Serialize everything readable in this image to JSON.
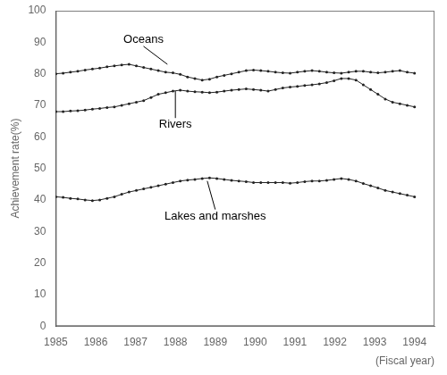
{
  "chart_data": {
    "type": "line",
    "ylabel": "Achievement rate(%)",
    "xlabel": "(Fiscal year)",
    "x": [
      1985,
      1985.183673,
      1985.367347,
      1985.55102,
      1985.734694,
      1985.918367,
      1986.102041,
      1986.285714,
      1986.469388,
      1986.653061,
      1986.836735,
      1987.020408,
      1987.204082,
      1987.387755,
      1987.571429,
      1987.755102,
      1987.938776,
      1988.122449,
      1988.306122,
      1988.489796,
      1988.673469,
      1988.857143,
      1989.040816,
      1989.22449,
      1989.408163,
      1989.591837,
      1989.77551,
      1989.959184,
      1990.142857,
      1990.326531,
      1990.510204,
      1990.693878,
      1990.877551,
      1991.061224,
      1991.244898,
      1991.428571,
      1991.612245,
      1991.795918,
      1991.979592,
      1992.163265,
      1992.346939,
      1992.530612,
      1992.714286,
      1992.897959,
      1993.081633,
      1993.265306,
      1993.44898,
      1993.632653,
      1993.816327,
      1994
    ],
    "series": [
      {
        "name": "Oceans",
        "color": "#222222",
        "values": [
          80.0,
          80.2,
          80.5,
          80.8,
          81.2,
          81.5,
          81.8,
          82.2,
          82.5,
          82.8,
          83.0,
          82.5,
          82.0,
          81.5,
          81.0,
          80.5,
          80.3,
          79.8,
          79.0,
          78.5,
          78.0,
          78.3,
          79.0,
          79.5,
          80.0,
          80.5,
          81.0,
          81.2,
          81.0,
          80.8,
          80.5,
          80.3,
          80.2,
          80.5,
          80.8,
          81.0,
          80.8,
          80.5,
          80.3,
          80.2,
          80.5,
          80.8,
          80.8,
          80.5,
          80.3,
          80.5,
          80.8,
          81.0,
          80.5,
          80.2
        ]
      },
      {
        "name": "Rivers",
        "color": "#222222",
        "values": [
          68.0,
          68.0,
          68.2,
          68.3,
          68.5,
          68.8,
          69.0,
          69.3,
          69.5,
          70.0,
          70.5,
          71.0,
          71.5,
          72.5,
          73.5,
          74.0,
          74.5,
          74.8,
          74.5,
          74.3,
          74.2,
          74.0,
          74.2,
          74.5,
          74.8,
          75.0,
          75.2,
          75.0,
          74.8,
          74.5,
          75.0,
          75.5,
          75.8,
          76.0,
          76.3,
          76.5,
          76.8,
          77.2,
          77.8,
          78.5,
          78.5,
          78.0,
          76.5,
          75.0,
          73.5,
          72.0,
          71.0,
          70.5,
          70.0,
          69.5
        ]
      },
      {
        "name": "Lakes and marshes",
        "color": "#222222",
        "values": [
          41.0,
          40.8,
          40.5,
          40.3,
          40.0,
          39.8,
          40.0,
          40.5,
          41.0,
          41.8,
          42.5,
          43.0,
          43.5,
          44.0,
          44.5,
          45.0,
          45.5,
          46.0,
          46.3,
          46.5,
          46.8,
          47.0,
          46.8,
          46.5,
          46.2,
          46.0,
          45.8,
          45.5,
          45.5,
          45.5,
          45.5,
          45.5,
          45.3,
          45.5,
          45.8,
          46.0,
          46.0,
          46.2,
          46.5,
          46.8,
          46.5,
          46.0,
          45.2,
          44.5,
          43.8,
          43.0,
          42.5,
          42.0,
          41.5,
          41.0
        ]
      }
    ],
    "annotations": [
      {
        "text": "Oceans",
        "x": 1987.8,
        "y": 83.0,
        "text_x": 1987.2,
        "text_y": 89
      },
      {
        "text": "Rivers",
        "x": 1988.0,
        "y": 74.5,
        "text_x": 1988.0,
        "text_y": 62
      },
      {
        "text": "Lakes and marshes",
        "x": 1988.8,
        "y": 46.0,
        "text_x": 1989.0,
        "text_y": 33
      }
    ],
    "xlim": [
      1985,
      1994.5
    ],
    "ylim": [
      0,
      100
    ],
    "xticks": [
      1985,
      1986,
      1987,
      1988,
      1989,
      1990,
      1991,
      1992,
      1993,
      1994
    ],
    "yticks": [
      0,
      10,
      20,
      30,
      40,
      50,
      60,
      70,
      80,
      90,
      100
    ],
    "grid": false
  }
}
